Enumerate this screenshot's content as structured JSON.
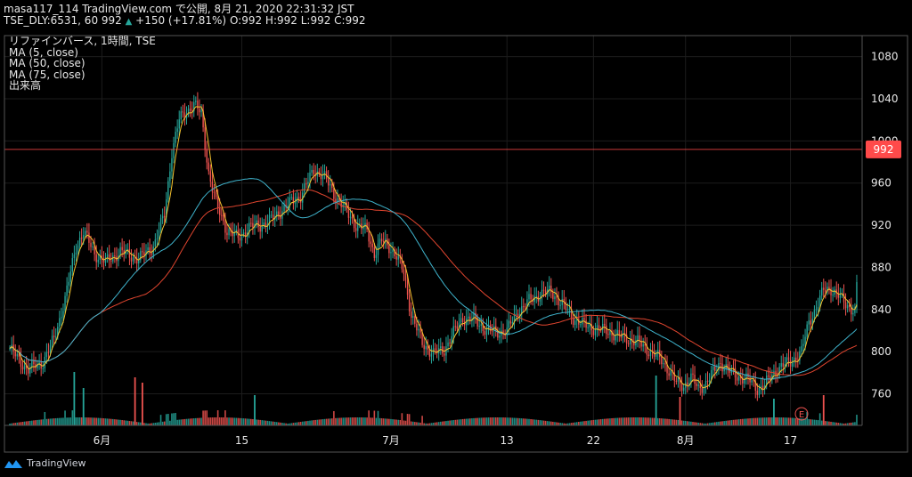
{
  "header": {
    "line1_prefix": "masa117_114 TradingView.com で公開, 8月 21, 2020 22:31:32 JST",
    "line2_symbol": "TSE_DLY:6531, 60 992",
    "line2_change": "+150 (+17.81%)",
    "line2_ohlc": "O:992 H:992 L:992 C:992",
    "up_arrow": "▲"
  },
  "legend": {
    "title": "リファインバース, 1時間, TSE",
    "ma5": "MA (5, close)",
    "ma50": "MA (50, close)",
    "ma75": "MA (75, close)",
    "volume": "出来高"
  },
  "price_label": "992",
  "event_marker": "E",
  "brand": "TradingView",
  "colors": {
    "background": "#000000",
    "up": "#26a69a",
    "down": "#ef5350",
    "ma5": "#f5c22e",
    "ma50": "#3fb3cc",
    "ma75": "#e0452f",
    "price_line": "#ff4a4a",
    "grid": "#1c1c1c"
  },
  "chart_data": {
    "type": "candlestick",
    "y_ticks": [
      1080,
      1040,
      1000,
      960,
      920,
      880,
      840,
      800,
      760
    ],
    "ylim": [
      730,
      1100
    ],
    "x_ticks": [
      "6月",
      "15",
      "7月",
      "13",
      "22",
      "8月",
      "17"
    ],
    "last_price": 992,
    "grid": true,
    "anchors": [
      [
        0,
        803
      ],
      [
        5,
        792
      ],
      [
        10,
        783
      ],
      [
        18,
        790
      ],
      [
        24,
        812
      ],
      [
        30,
        850
      ],
      [
        36,
        900
      ],
      [
        40,
        914
      ],
      [
        46,
        893
      ],
      [
        52,
        885
      ],
      [
        60,
        895
      ],
      [
        70,
        888
      ],
      [
        78,
        900
      ],
      [
        84,
        930
      ],
      [
        88,
        990
      ],
      [
        92,
        1020
      ],
      [
        96,
        1028
      ],
      [
        100,
        1035
      ],
      [
        104,
        1025
      ],
      [
        108,
        970
      ],
      [
        112,
        940
      ],
      [
        118,
        915
      ],
      [
        124,
        908
      ],
      [
        130,
        918
      ],
      [
        136,
        920
      ],
      [
        142,
        925
      ],
      [
        150,
        938
      ],
      [
        158,
        948
      ],
      [
        165,
        972
      ],
      [
        170,
        968
      ],
      [
        176,
        950
      ],
      [
        182,
        935
      ],
      [
        188,
        920
      ],
      [
        194,
        915
      ],
      [
        198,
        893
      ],
      [
        202,
        905
      ],
      [
        206,
        900
      ],
      [
        210,
        890
      ],
      [
        214,
        875
      ],
      [
        218,
        835
      ],
      [
        224,
        808
      ],
      [
        230,
        798
      ],
      [
        236,
        802
      ],
      [
        240,
        815
      ],
      [
        246,
        832
      ],
      [
        252,
        830
      ],
      [
        258,
        822
      ],
      [
        264,
        818
      ],
      [
        270,
        820
      ],
      [
        276,
        838
      ],
      [
        282,
        848
      ],
      [
        288,
        855
      ],
      [
        294,
        857
      ],
      [
        300,
        845
      ],
      [
        306,
        832
      ],
      [
        312,
        825
      ],
      [
        318,
        822
      ],
      [
        324,
        820
      ],
      [
        330,
        815
      ],
      [
        336,
        812
      ],
      [
        342,
        808
      ],
      [
        348,
        800
      ],
      [
        354,
        792
      ],
      [
        358,
        782
      ],
      [
        362,
        770
      ],
      [
        366,
        768
      ],
      [
        370,
        775
      ],
      [
        374,
        765
      ],
      [
        378,
        770
      ],
      [
        382,
        780
      ],
      [
        386,
        790
      ],
      [
        390,
        782
      ],
      [
        394,
        778
      ],
      [
        398,
        775
      ],
      [
        402,
        772
      ],
      [
        406,
        765
      ],
      [
        410,
        768
      ],
      [
        414,
        778
      ],
      [
        418,
        785
      ],
      [
        424,
        790
      ],
      [
        430,
        800
      ],
      [
        434,
        828
      ],
      [
        438,
        842
      ],
      [
        442,
        858
      ],
      [
        446,
        860
      ],
      [
        450,
        853
      ],
      [
        454,
        845
      ],
      [
        458,
        840
      ],
      [
        460,
        836
      ]
    ]
  }
}
